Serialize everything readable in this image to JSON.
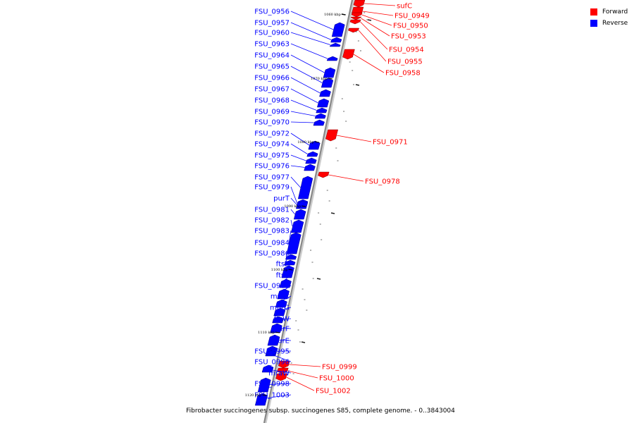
{
  "caption": "Fibrobacter succinogenes subsp. succinogenes S85, complete genome. - 0..3843004",
  "legend": [
    {
      "label": "Forward",
      "color": "#ff0000"
    },
    {
      "label": "Reverse",
      "color": "#0000ff"
    }
  ],
  "colors": {
    "forward": "#ff0000",
    "reverse": "#0000ff",
    "backbone": "#888888"
  },
  "ticks": [
    "1060 kbp",
    "1070 kbp",
    "1080 kbp",
    "1090 kbp",
    "1100 kbp",
    "1110 kbp",
    "1120 kbp"
  ],
  "forward_genes": [
    "sufC",
    "FSU_0949",
    "FSU_0950",
    "FSU_0953",
    "FSU_0954",
    "FSU_0955",
    "FSU_0958",
    "FSU_0971",
    "FSU_0978",
    "FSU_0999",
    "FSU_1000",
    "FSU_1002"
  ],
  "reverse_genes": [
    "FSU_0956",
    "FSU_0957",
    "FSU_0960",
    "FSU_0963",
    "FSU_0964",
    "FSU_0965",
    "FSU_0966",
    "FSU_0967",
    "FSU_0968",
    "FSU_0969",
    "FSU_0970",
    "FSU_0972",
    "FSU_0974",
    "FSU_0975",
    "FSU_0976",
    "FSU_0977",
    "FSU_0979",
    "purT",
    "FSU_0981",
    "FSU_0982",
    "FSU_0983",
    "FSU_0984",
    "FSU_0986",
    "ftsZ",
    "ftsA",
    "FSU_0989",
    "murC",
    "murG",
    "ftsW",
    "murF",
    "murE",
    "FSU_0995",
    "FSU_0996",
    "mraW",
    "FSU_0998",
    "FSU_1003"
  ]
}
